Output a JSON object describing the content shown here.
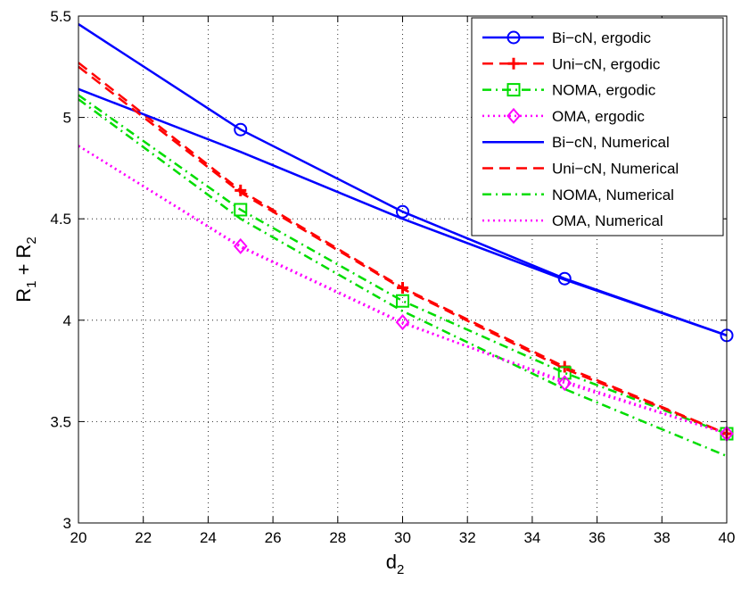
{
  "chart_data": {
    "type": "line",
    "title": "",
    "xlabel": {
      "main": "d",
      "sub": "2"
    },
    "ylabel": {
      "r1": "R",
      "sub1": "1",
      "plus": " + ",
      "r2": "R",
      "sub2": "2"
    },
    "xlim": [
      20,
      40
    ],
    "ylim": [
      3,
      5.5
    ],
    "xticks": [
      "20",
      "22",
      "24",
      "26",
      "28",
      "30",
      "32",
      "34",
      "36",
      "38",
      "40"
    ],
    "yticks": [
      "3",
      "3.5",
      "4",
      "4.5",
      "5",
      "5.5"
    ],
    "grid": true,
    "legend_position": "top-right",
    "series": [
      {
        "name": "Bi−cN, ergodic",
        "color": "#0000ff",
        "dash": "solid",
        "marker": "circle",
        "x": [
          20,
          25,
          30,
          35,
          40
        ],
        "values": [
          5.46,
          4.94,
          4.535,
          4.205,
          3.925
        ]
      },
      {
        "name": "Uni−cN, ergodic",
        "color": "#ff0000",
        "dash": "dashed",
        "marker": "plus",
        "x": [
          20,
          25,
          30,
          35,
          40
        ],
        "values": [
          5.27,
          4.64,
          4.16,
          3.77,
          3.44
        ]
      },
      {
        "name": "NOMA, ergodic",
        "color": "#00dd00",
        "dash": "dashdot",
        "marker": "square",
        "x": [
          20,
          25,
          30,
          35,
          40
        ],
        "values": [
          5.11,
          4.545,
          4.095,
          3.74,
          3.44
        ]
      },
      {
        "name": "OMA, ergodic",
        "color": "#ff00ff",
        "dash": "dotted",
        "marker": "diamond",
        "x": [
          20,
          25,
          30,
          35,
          40
        ],
        "values": [
          4.86,
          4.365,
          3.99,
          3.69,
          3.44
        ]
      },
      {
        "name": "Bi−cN, Numerical",
        "color": "#0000ff",
        "dash": "solid",
        "marker": "none",
        "x": [
          20,
          25,
          30,
          35,
          40
        ],
        "values": [
          5.14,
          4.83,
          4.5,
          4.2,
          3.925
        ]
      },
      {
        "name": "Uni−cN, Numerical",
        "color": "#ff0000",
        "dash": "dashed",
        "marker": "none",
        "x": [
          20,
          25,
          30,
          35,
          40
        ],
        "values": [
          5.25,
          4.63,
          4.155,
          3.76,
          3.44
        ]
      },
      {
        "name": "NOMA, Numerical",
        "color": "#00dd00",
        "dash": "dashdot",
        "marker": "none",
        "x": [
          20,
          25,
          30,
          35,
          40
        ],
        "values": [
          5.09,
          4.5,
          4.045,
          3.66,
          3.33
        ]
      },
      {
        "name": "OMA, Numerical",
        "color": "#ff00ff",
        "dash": "dotted",
        "marker": "none",
        "x": [
          20,
          25,
          30,
          35,
          40
        ],
        "values": [
          4.86,
          4.36,
          3.985,
          3.7,
          3.44
        ]
      }
    ]
  }
}
